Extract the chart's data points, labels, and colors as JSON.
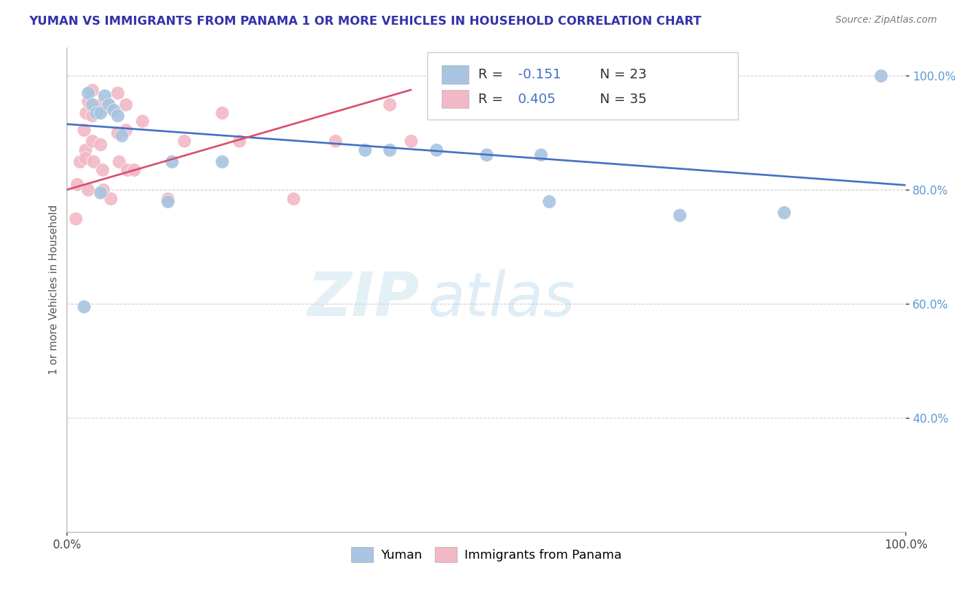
{
  "title": "YUMAN VS IMMIGRANTS FROM PANAMA 1 OR MORE VEHICLES IN HOUSEHOLD CORRELATION CHART",
  "source_text": "Source: ZipAtlas.com",
  "ylabel": "1 or more Vehicles in Household",
  "xmin": 0.0,
  "xmax": 1.0,
  "ymin": 0.2,
  "ymax": 1.05,
  "legend_r1": "-0.151",
  "legend_n1": "N = 23",
  "legend_r2": "0.405",
  "legend_n2": "N = 35",
  "legend_label1": "Yuman",
  "legend_label2": "Immigrants from Panama",
  "blue_color": "#a8c4e0",
  "pink_color": "#f2b8c6",
  "blue_line_color": "#4472c4",
  "pink_line_color": "#d94f6e",
  "watermark_zip": "ZIP",
  "watermark_atlas": "atlas",
  "yuman_x": [
    0.02,
    0.025,
    0.03,
    0.035,
    0.04,
    0.04,
    0.045,
    0.05,
    0.055,
    0.06,
    0.065,
    0.12,
    0.125,
    0.185,
    0.355,
    0.385,
    0.44,
    0.5,
    0.565,
    0.575,
    0.73,
    0.855,
    0.97
  ],
  "yuman_y": [
    0.595,
    0.97,
    0.95,
    0.935,
    0.935,
    0.795,
    0.965,
    0.95,
    0.94,
    0.93,
    0.895,
    0.78,
    0.85,
    0.85,
    0.87,
    0.87,
    0.87,
    0.862,
    0.862,
    0.78,
    0.755,
    0.76,
    1.0
  ],
  "panama_x": [
    0.01,
    0.012,
    0.015,
    0.02,
    0.022,
    0.022,
    0.023,
    0.025,
    0.025,
    0.03,
    0.03,
    0.03,
    0.032,
    0.04,
    0.04,
    0.042,
    0.043,
    0.05,
    0.052,
    0.06,
    0.06,
    0.062,
    0.07,
    0.07,
    0.072,
    0.08,
    0.09,
    0.12,
    0.14,
    0.185,
    0.205,
    0.27,
    0.32,
    0.385,
    0.41
  ],
  "panama_y": [
    0.75,
    0.81,
    0.85,
    0.905,
    0.87,
    0.855,
    0.935,
    0.955,
    0.8,
    0.975,
    0.93,
    0.885,
    0.85,
    0.95,
    0.88,
    0.835,
    0.8,
    0.95,
    0.785,
    0.97,
    0.9,
    0.85,
    0.95,
    0.905,
    0.835,
    0.835,
    0.92,
    0.785,
    0.885,
    0.935,
    0.885,
    0.785,
    0.885,
    0.95,
    0.885
  ],
  "blue_trend": [
    0.0,
    1.0,
    0.915,
    0.808
  ],
  "pink_trend": [
    0.0,
    0.41,
    0.8,
    0.975
  ],
  "yticks": [
    1.0,
    0.8,
    0.6,
    0.4
  ],
  "ytick_labels": [
    "100.0%",
    "80.0%",
    "60.0%",
    "40.0%"
  ],
  "xticks": [
    0.0,
    1.0
  ],
  "xtick_labels": [
    "0.0%",
    "100.0%"
  ]
}
